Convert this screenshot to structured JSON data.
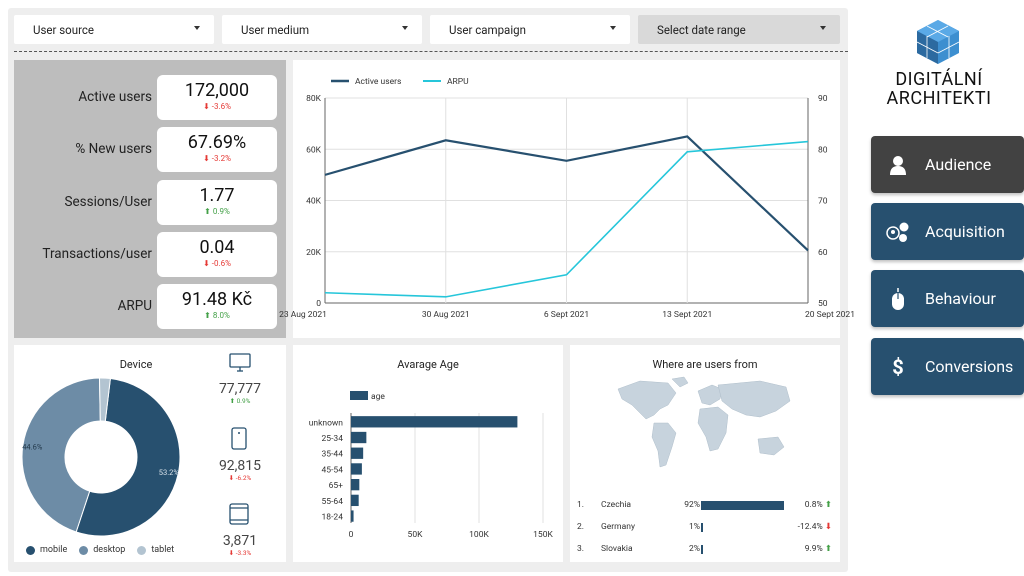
{
  "filters": {
    "user_source": "User source",
    "user_medium": "User medium",
    "user_campaign": "User campaign",
    "date_range": "Select date range"
  },
  "kpis": [
    {
      "label": "Active users",
      "value": "172,000",
      "delta": "-3.6%",
      "trend": "down"
    },
    {
      "label": "% New users",
      "value": "67.69%",
      "delta": "-3.2%",
      "trend": "down"
    },
    {
      "label": "Sessions/User",
      "value": "1.77",
      "delta": "0.9%",
      "trend": "up"
    },
    {
      "label": "Transactions/user",
      "value": "0.04",
      "delta": "-0.6%",
      "trend": "down"
    },
    {
      "label": "ARPU",
      "value": "91.48 Kč",
      "delta": "8.0%",
      "trend": "up"
    }
  ],
  "chart_data": [
    {
      "type": "line",
      "legend": [
        "Active users",
        "ARPU"
      ],
      "x": [
        "23 Aug 2021",
        "30 Aug 2021",
        "6 Sept 2021",
        "13 Sept 2021",
        "20 Sept 2021"
      ],
      "series": [
        {
          "name": "Active users",
          "values": [
            50000,
            63500,
            55500,
            65000,
            20500
          ],
          "color": "#27506f",
          "axis": "left"
        },
        {
          "name": "ARPU",
          "values": [
            52,
            51.2,
            55.5,
            79.5,
            81.5
          ],
          "color": "#26c6da",
          "axis": "right"
        }
      ],
      "yticks_left": [
        "0",
        "20K",
        "40K",
        "60K",
        "80K"
      ],
      "yticks_right": [
        "50",
        "60",
        "70",
        "80",
        "90"
      ],
      "ylim_left": [
        0,
        80000
      ],
      "ylim_right": [
        50,
        90
      ]
    },
    {
      "type": "pie",
      "title": "Device",
      "labels": [
        "mobile",
        "desktop",
        "tablet"
      ],
      "values": [
        53.2,
        44.6,
        2.2
      ],
      "slice_labels": [
        "53.2%",
        "44.6%",
        ""
      ],
      "colors": [
        "#27506f",
        "#6d8ca6",
        "#b3c4d1"
      ]
    },
    {
      "type": "bar",
      "title": "Avarage Age",
      "legend": "age",
      "categories": [
        "unknown",
        "25-34",
        "35-44",
        "45-54",
        "65+",
        "55-64",
        "18-24"
      ],
      "values": [
        130000,
        12000,
        9500,
        8500,
        6500,
        6000,
        2000
      ],
      "xticks": [
        "0",
        "50K",
        "100K",
        "150K"
      ],
      "xlim": [
        0,
        150000
      ],
      "color": "#27506f"
    }
  ],
  "devices": [
    {
      "name": "desktop-icon",
      "count": "77,777",
      "delta": "0.9%",
      "trend": "up"
    },
    {
      "name": "tablet-icon",
      "count": "92,815",
      "delta": "-6.2%",
      "trend": "down"
    },
    {
      "name": "mobile-icon",
      "count": "3,871",
      "delta": "-3.3%",
      "trend": "down"
    }
  ],
  "geo": {
    "title": "Where are users from",
    "rows": [
      {
        "rank": "1.",
        "country": "Czechia",
        "share": "92%",
        "share_frac": 0.92,
        "change": "0.8%",
        "trend": "up"
      },
      {
        "rank": "2.",
        "country": "Germany",
        "share": "1%",
        "share_frac": 0.01,
        "change": "-12.4%",
        "trend": "down"
      },
      {
        "rank": "3.",
        "country": "Slovakia",
        "share": "2%",
        "share_frac": 0.02,
        "change": "9.9%",
        "trend": "up"
      }
    ]
  },
  "brand": {
    "line1": "DIGITÁLNÍ",
    "line2": "ARCHITEKTI"
  },
  "nav": [
    {
      "label": "Audience",
      "icon": "person-icon",
      "active": true
    },
    {
      "label": "Acquisition",
      "icon": "acquisition-icon",
      "active": false
    },
    {
      "label": "Behaviour",
      "icon": "mouse-icon",
      "active": false
    },
    {
      "label": "Conversions",
      "icon": "dollar-icon",
      "active": false
    }
  ],
  "colors": {
    "accent": "#27506f",
    "arpu": "#26c6da",
    "nav_active": "#424242",
    "negative": "#e53935",
    "positive": "#43a047"
  }
}
